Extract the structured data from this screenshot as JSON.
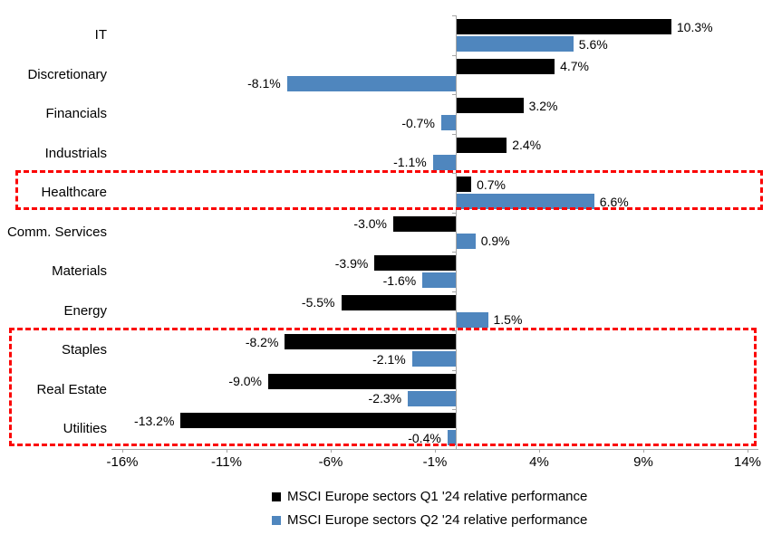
{
  "chart_data": {
    "type": "bar",
    "orientation": "horizontal",
    "title": "",
    "categories": [
      "IT",
      "Discretionary",
      "Financials",
      "Industrials",
      "Healthcare",
      "Comm. Services",
      "Materials",
      "Energy",
      "Staples",
      "Real Estate",
      "Utilities"
    ],
    "series": [
      {
        "name": "MSCI Europe sectors Q1 '24 relative performance",
        "color": "#000000",
        "values": [
          10.3,
          4.7,
          3.2,
          2.4,
          0.7,
          -3.0,
          -3.9,
          -5.5,
          -8.2,
          -9.0,
          -13.2
        ],
        "labels": [
          "10.3%",
          "4.7%",
          "3.2%",
          "2.4%",
          "0.7%",
          "-3.0%",
          "-3.9%",
          "-5.5%",
          "-8.2%",
          "-9.0%",
          "-13.2%"
        ]
      },
      {
        "name": "MSCI Europe sectors Q2 '24 relative performance",
        "color": "#4f86be",
        "values": [
          5.6,
          -8.1,
          -0.7,
          -1.1,
          6.6,
          0.9,
          -1.6,
          1.5,
          -2.1,
          -2.3,
          -0.4
        ],
        "labels": [
          "5.6%",
          "-8.1%",
          "-0.7%",
          "-1.1%",
          "6.6%",
          "0.9%",
          "-1.6%",
          "1.5%",
          "-2.1%",
          "-2.3%",
          "-0.4%"
        ]
      }
    ],
    "x_tick_labels": [
      "-16%",
      "-11%",
      "-6%",
      "-1%",
      "4%",
      "9%",
      "14%"
    ],
    "x_tick_values": [
      -16,
      -11,
      -6,
      -1,
      4,
      9,
      14
    ],
    "xlim": [
      -16.5,
      14.5
    ],
    "grid": false,
    "legend_position": "bottom",
    "axis_color": "#a6a6a6",
    "highlight_color": "#fb0505",
    "highlighted_groups": [
      [
        "Healthcare"
      ],
      [
        "Staples",
        "Real Estate",
        "Utilities"
      ]
    ]
  }
}
